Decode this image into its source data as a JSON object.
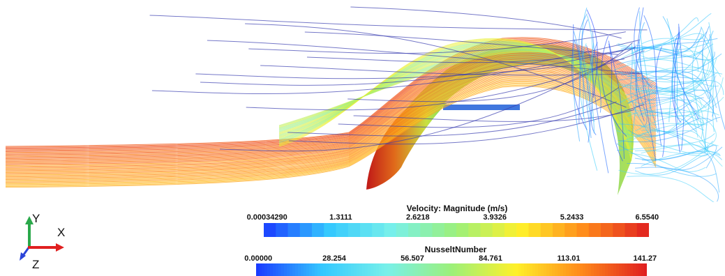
{
  "legend_velocity": {
    "title": "Velocity: Magnitude (m/s)",
    "ticks": [
      "0.00034290",
      "1.3111",
      "2.6218",
      "3.9326",
      "5.2433",
      "6.5540"
    ],
    "bins": 32,
    "colors": [
      "#1a3cff",
      "#34c8ff",
      "#78f0ea",
      "#9cf07a",
      "#fff02a",
      "#ff8a1a",
      "#e02020"
    ]
  },
  "legend_nusselt": {
    "title": "NusseltNumber",
    "ticks": [
      "0.00000",
      "28.254",
      "56.507",
      "84.761",
      "113.01",
      "141.27"
    ],
    "colors": [
      "#1a3cff",
      "#34c8ff",
      "#78f0ea",
      "#9cf07a",
      "#fff02a",
      "#ff8a1a",
      "#e02020"
    ]
  },
  "axes_triad": {
    "x": "X",
    "y": "Y",
    "z": "Z",
    "x_color": "#e02020",
    "y_color": "#2aa84a",
    "z_color": "#2b44d8"
  }
}
